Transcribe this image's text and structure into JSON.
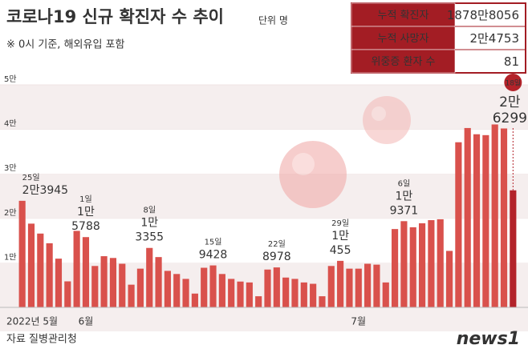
{
  "chart_data": {
    "type": "bar",
    "title": "코로나19 신규 확진자 수 추이",
    "unit": "단위 명",
    "subtitle": "※ 0시 기준, 해외유입 포함",
    "source": "자료 질병관리청",
    "logo": "news1",
    "stats": [
      [
        "누적 확진자",
        "1878만8056"
      ],
      [
        "누적 사망자",
        "2만4753"
      ],
      [
        "위중증 환자 수",
        "81"
      ]
    ],
    "categories": [
      "2022년 5월",
      null,
      null,
      null,
      null,
      null,
      null,
      "6월",
      null,
      null,
      null,
      null,
      null,
      null,
      null,
      null,
      null,
      null,
      null,
      null,
      null,
      null,
      null,
      null,
      null,
      null,
      null,
      null,
      null,
      null,
      null,
      null,
      null,
      null,
      null,
      null,
      null,
      "7월",
      null,
      null,
      null,
      null,
      null,
      null,
      null,
      null,
      null,
      null,
      null,
      null,
      null,
      null,
      null,
      null,
      null
    ],
    "values": [
      23945,
      18816,
      16584,
      14410,
      10949,
      5846,
      17188,
      15788,
      9300,
      11500,
      11100,
      9800,
      5100,
      8700,
      13355,
      11300,
      8200,
      7500,
      6400,
      3100,
      8900,
      9428,
      7500,
      6400,
      5800,
      5600,
      2500,
      8500,
      8978,
      6700,
      6400,
      5600,
      5300,
      2500,
      9300,
      10455,
      8700,
      8700,
      9800,
      9600,
      5600,
      17600,
      19371,
      18000,
      18900,
      19600,
      19800,
      12693,
      37100,
      40300,
      38900,
      38700,
      41100,
      40200,
      26299
    ],
    "date_labels": [
      "25일",
      null,
      null,
      null,
      null,
      null,
      null,
      "1일",
      null,
      null,
      null,
      null,
      null,
      null,
      "8일",
      null,
      null,
      null,
      null,
      null,
      null,
      "15일",
      null,
      null,
      null,
      null,
      null,
      null,
      "22일",
      null,
      null,
      null,
      null,
      null,
      null,
      "29일",
      null,
      null,
      null,
      null,
      null,
      null,
      "6일",
      null,
      null,
      null,
      null,
      null,
      null,
      null,
      null,
      null,
      null,
      null,
      "18일"
    ],
    "value_labels": [
      [
        "2만3945"
      ],
      null,
      null,
      null,
      null,
      null,
      null,
      [
        "1만",
        "5788"
      ],
      null,
      null,
      null,
      null,
      null,
      null,
      [
        "1만",
        "3355"
      ],
      null,
      null,
      null,
      null,
      null,
      null,
      [
        "9428"
      ],
      null,
      null,
      null,
      null,
      null,
      null,
      [
        "8978"
      ],
      null,
      null,
      null,
      null,
      null,
      null,
      [
        "1만",
        "455"
      ],
      null,
      null,
      null,
      null,
      null,
      null,
      [
        "1만",
        "9371"
      ],
      null,
      null,
      null,
      null,
      null,
      null,
      null,
      null,
      null,
      null,
      null,
      [
        "2만",
        "6299"
      ]
    ],
    "color": "#d9514c",
    "highlight_color": "#b3232a",
    "ylim": [
      0,
      50000
    ],
    "yticks": [
      {
        "value": 10000,
        "label": "1만"
      },
      {
        "value": 20000,
        "label": "2만"
      },
      {
        "value": 30000,
        "label": "3만"
      },
      {
        "value": 40000,
        "label": "4만"
      },
      {
        "value": 50000,
        "label": "5만"
      }
    ]
  }
}
